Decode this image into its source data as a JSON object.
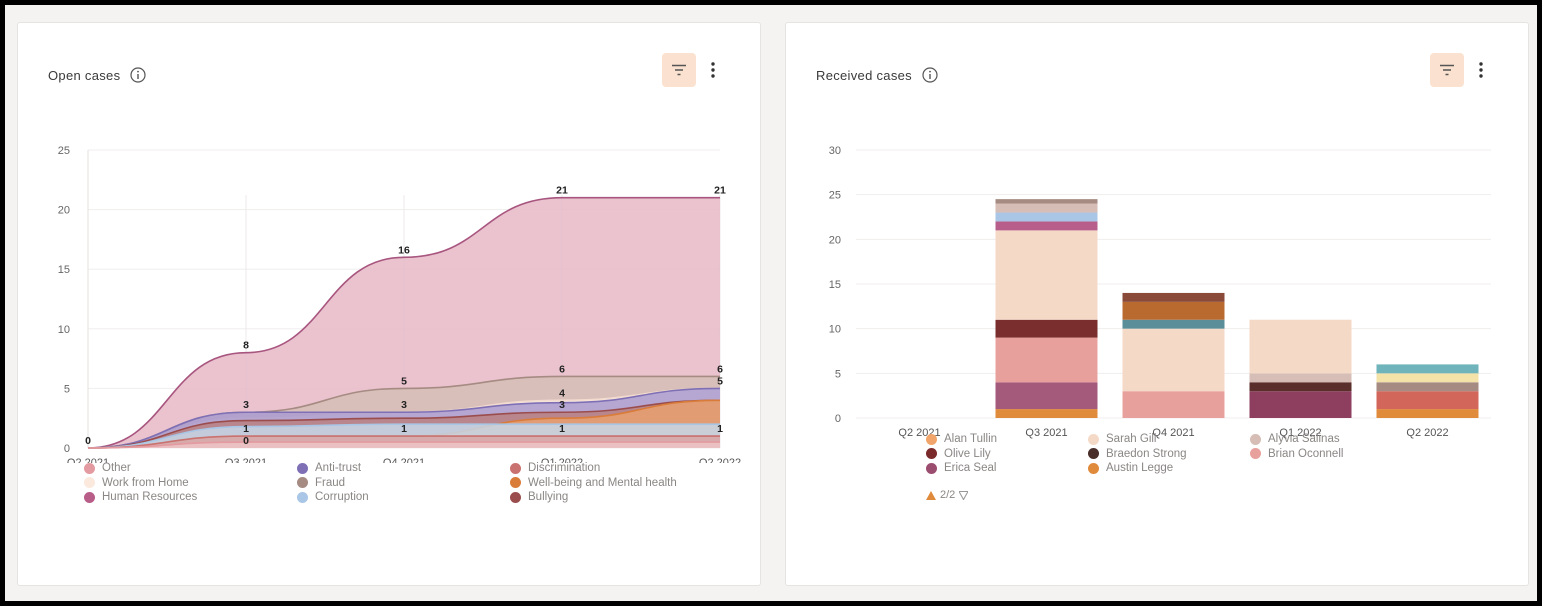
{
  "open_cases": {
    "title": "Open cases",
    "chart_data": {
      "type": "area",
      "categories": [
        "Q2 2021",
        "Q3 2021",
        "Q4 2021",
        "Q1 2022",
        "Q2 2022"
      ],
      "ylim": [
        0,
        25
      ],
      "yticks": [
        0,
        5,
        10,
        15,
        20,
        25
      ],
      "grid": true,
      "legend_position": "bottom",
      "series": [
        {
          "name": "Human Resources",
          "color": "#a8567f",
          "fill": "#e6b8c7",
          "values": [
            0,
            8,
            16,
            21,
            21
          ]
        },
        {
          "name": "Fraud",
          "color": "#a58b82",
          "fill": "#d6beb6",
          "values": [
            0,
            3,
            5,
            6,
            6
          ]
        },
        {
          "name": "Work from Home",
          "color": "#f3dccf",
          "fill": "#fbeee5",
          "values": [
            0,
            2.5,
            3,
            4,
            5
          ]
        },
        {
          "name": "Anti-trust",
          "color": "#7f70b6",
          "fill": "#a99bcf",
          "values": [
            0,
            3,
            3,
            3.8,
            5
          ]
        },
        {
          "name": "Bullying",
          "color": "#9b4d4d",
          "fill": "#b98080",
          "values": [
            0,
            2.3,
            2.5,
            3,
            4
          ]
        },
        {
          "name": "Well-being and Mental health",
          "color": "#d97c3a",
          "fill": "#e7a06f",
          "values": [
            0,
            1,
            1,
            2.5,
            4
          ]
        },
        {
          "name": "Corruption",
          "color": "#a9c6e6",
          "fill": "#c6d7e8",
          "values": [
            0,
            1.8,
            2,
            2,
            2
          ]
        },
        {
          "name": "Discrimination",
          "color": "#c9726f",
          "fill": "#d9a5a4",
          "values": [
            0,
            1,
            1,
            1,
            1
          ]
        },
        {
          "name": "Other",
          "color": "#e39aa0",
          "fill": "#efc3c6",
          "values": [
            0,
            0.5,
            0.5,
            0.5,
            0.5
          ]
        }
      ],
      "annotations": [
        {
          "x": "Q2 2021",
          "y": 0,
          "label": "0"
        },
        {
          "x": "Q3 2021",
          "y": 8,
          "label": "8"
        },
        {
          "x": "Q4 2021",
          "y": 16,
          "label": "16"
        },
        {
          "x": "Q1 2022",
          "y": 21,
          "label": "21"
        },
        {
          "x": "Q2 2022",
          "y": 21,
          "label": "21"
        },
        {
          "x": "Q3 2021",
          "y": 3,
          "label": "3"
        },
        {
          "x": "Q3 2021",
          "y": 1,
          "label": "1"
        },
        {
          "x": "Q3 2021",
          "y": 0,
          "label": "0"
        },
        {
          "x": "Q4 2021",
          "y": 5,
          "label": "5"
        },
        {
          "x": "Q4 2021",
          "y": 3,
          "label": "3"
        },
        {
          "x": "Q4 2021",
          "y": 1,
          "label": "1"
        },
        {
          "x": "Q1 2022",
          "y": 6,
          "label": "6"
        },
        {
          "x": "Q1 2022",
          "y": 4,
          "label": "4"
        },
        {
          "x": "Q1 2022",
          "y": 3,
          "label": "3"
        },
        {
          "x": "Q1 2022",
          "y": 1,
          "label": "1"
        },
        {
          "x": "Q2 2022",
          "y": 6,
          "label": "6"
        },
        {
          "x": "Q2 2022",
          "y": 5,
          "label": "5"
        },
        {
          "x": "Q2 2022",
          "y": 1,
          "label": "1"
        }
      ]
    },
    "legend": [
      {
        "name": "Other",
        "color": "#e39aa0"
      },
      {
        "name": "Work from Home",
        "color": "#fbe9dd"
      },
      {
        "name": "Human Resources",
        "color": "#b85d88"
      },
      {
        "name": "Anti-trust",
        "color": "#7f70b6"
      },
      {
        "name": "Fraud",
        "color": "#a58b82"
      },
      {
        "name": "Corruption",
        "color": "#a9c6e6"
      },
      {
        "name": "Discrimination",
        "color": "#c9726f"
      },
      {
        "name": "Well-being and Mental health",
        "color": "#d97c3a"
      },
      {
        "name": "Bullying",
        "color": "#9b4d4d"
      }
    ]
  },
  "received_cases": {
    "title": "Received cases",
    "chart_data": {
      "type": "bar",
      "stacked": true,
      "categories": [
        "Q2 2021",
        "Q3 2021",
        "Q4 2021",
        "Q1 2022",
        "Q2 2022"
      ],
      "ylim": [
        0,
        30
      ],
      "yticks": [
        0,
        5,
        10,
        15,
        20,
        25,
        30
      ],
      "grid": true,
      "legend_position": "bottom",
      "stacks": [
        [],
        [
          {
            "color": "#e08a3c",
            "value": 1
          },
          {
            "color": "#a45a7a",
            "value": 3
          },
          {
            "color": "#e8a09c",
            "value": 5
          },
          {
            "color": "#7a2e2e",
            "value": 2
          },
          {
            "color": "#f5d9c7",
            "value": 10
          },
          {
            "color": "#b75f8a",
            "value": 1
          },
          {
            "color": "#a9c6e6",
            "value": 1
          },
          {
            "color": "#d6beb6",
            "value": 1
          },
          {
            "color": "#a58b82",
            "value": 0.5
          }
        ],
        [
          {
            "color": "#e8a09c",
            "value": 3
          },
          {
            "color": "#f5d9c7",
            "value": 7
          },
          {
            "color": "#5a8f99",
            "value": 1
          },
          {
            "color": "#b86a2f",
            "value": 2
          },
          {
            "color": "#8a4a3a",
            "value": 1
          }
        ],
        [
          {
            "color": "#8e3f5f",
            "value": 3
          },
          {
            "color": "#5a2e2a",
            "value": 1
          },
          {
            "color": "#d6beb6",
            "value": 1
          },
          {
            "color": "#f5d9c7",
            "value": 6
          }
        ],
        [
          {
            "color": "#e08a3c",
            "value": 1
          },
          {
            "color": "#d3665a",
            "value": 2
          },
          {
            "color": "#a58b82",
            "value": 1
          },
          {
            "color": "#f3e3a8",
            "value": 1
          },
          {
            "color": "#6fb3bb",
            "value": 1
          }
        ]
      ]
    },
    "legend": [
      {
        "name": "Alan Tullin",
        "color": "#f1a56a"
      },
      {
        "name": "Olive Lily",
        "color": "#7a2a2a"
      },
      {
        "name": "Erica Seal",
        "color": "#9b4d6f"
      },
      {
        "name": "Sarah Gill",
        "color": "#f5d9c7"
      },
      {
        "name": "Braedon Strong",
        "color": "#4a2e2a"
      },
      {
        "name": "Austin Legge",
        "color": "#e08a3c"
      },
      {
        "name": "Alyvia Salinas",
        "color": "#d6beb6"
      },
      {
        "name": "Brian Oconnell",
        "color": "#e8a09c"
      }
    ],
    "pager": "2/2"
  },
  "icons": [
    "info-icon",
    "filter-icon",
    "more-vertical-icon",
    "arrow-up-icon",
    "arrow-down-icon"
  ],
  "accent_color": "#fbe1cf"
}
